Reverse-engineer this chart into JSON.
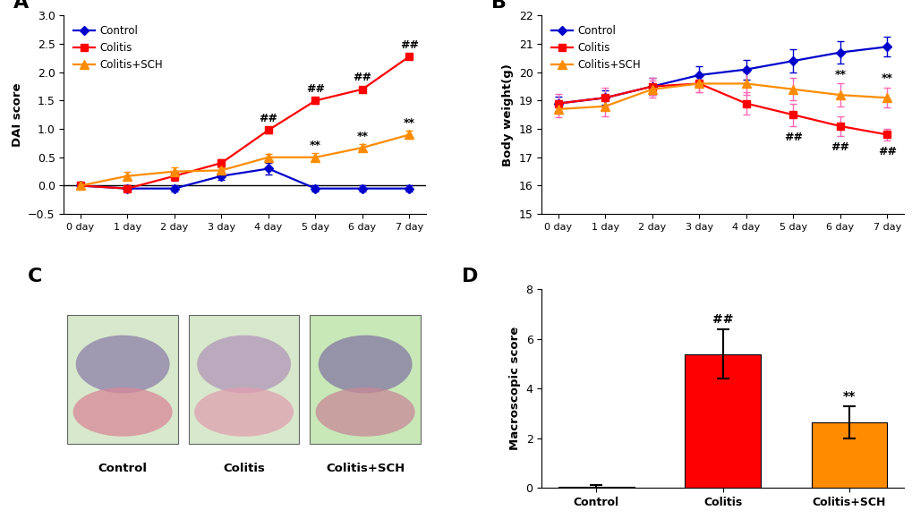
{
  "panel_A": {
    "ylabel": "DAI score",
    "xticklabels": [
      "0 day",
      "1 day",
      "2 day",
      "3 day",
      "4 day",
      "5 day",
      "6 day",
      "7 day"
    ],
    "ylim": [
      -0.5,
      3.0
    ],
    "yticks": [
      -0.5,
      0.0,
      0.5,
      1.0,
      1.5,
      2.0,
      2.5,
      3.0
    ],
    "control_y": [
      0.0,
      -0.05,
      -0.05,
      0.17,
      0.3,
      -0.05,
      -0.05,
      -0.05
    ],
    "control_err": [
      0.03,
      0.05,
      0.05,
      0.07,
      0.1,
      0.05,
      0.05,
      0.05
    ],
    "colitis_y": [
      0.0,
      -0.05,
      0.17,
      0.4,
      0.98,
      1.5,
      1.7,
      2.28
    ],
    "colitis_err": [
      0.03,
      0.05,
      0.08,
      0.07,
      0.05,
      0.05,
      0.05,
      0.05
    ],
    "sch_y": [
      0.0,
      0.17,
      0.25,
      0.27,
      0.5,
      0.5,
      0.67,
      0.9
    ],
    "sch_err": [
      0.03,
      0.07,
      0.07,
      0.06,
      0.06,
      0.07,
      0.06,
      0.07
    ],
    "annotations_hh": [
      4,
      5,
      6,
      7
    ],
    "annotations_ss": [
      5,
      6,
      7
    ],
    "control_color": "#0000CC",
    "colitis_color": "#FF0000",
    "sch_color": "#FF8C00"
  },
  "panel_B": {
    "ylabel": "Body weight(g)",
    "xticklabels": [
      "0 day",
      "1 day",
      "2 day",
      "3 day",
      "4 day",
      "5 day",
      "6 day",
      "7 day"
    ],
    "ylim": [
      15,
      22
    ],
    "yticks": [
      15,
      16,
      17,
      18,
      19,
      20,
      21,
      22
    ],
    "control_y": [
      18.9,
      19.1,
      19.5,
      19.9,
      20.1,
      20.4,
      20.7,
      20.9
    ],
    "control_err": [
      0.25,
      0.25,
      0.3,
      0.3,
      0.35,
      0.4,
      0.4,
      0.35
    ],
    "colitis_y": [
      18.9,
      19.1,
      19.5,
      19.6,
      18.9,
      18.5,
      18.1,
      17.8
    ],
    "colitis_err": [
      0.35,
      0.35,
      0.3,
      0.3,
      0.4,
      0.4,
      0.35,
      0.2
    ],
    "sch_y": [
      18.7,
      18.8,
      19.4,
      19.6,
      19.6,
      19.4,
      19.2,
      19.1
    ],
    "sch_err": [
      0.3,
      0.35,
      0.3,
      0.3,
      0.4,
      0.4,
      0.4,
      0.35
    ],
    "annotations_hh": [
      5,
      6,
      7
    ],
    "annotations_ss": [
      6,
      7
    ],
    "control_color": "#0000CC",
    "colitis_color": "#FF0000",
    "sch_color": "#FF8C00",
    "err_color_colitis": "#FF69B4",
    "err_color_sch": "#FF69B4"
  },
  "panel_D": {
    "ylabel": "Macroscopic score",
    "ylim": [
      0,
      8
    ],
    "yticks": [
      0,
      2,
      4,
      6,
      8
    ],
    "categories": [
      "Control",
      "Colitis",
      "Colitis+SCH"
    ],
    "values": [
      0.05,
      5.4,
      2.65
    ],
    "errors": [
      0.05,
      1.0,
      0.65
    ],
    "colors": [
      "#111111",
      "#FF0000",
      "#FF8C00"
    ],
    "annotation_hh_idx": 1,
    "annotation_ss_idx": 2
  },
  "he_images": {
    "labels": [
      "Control",
      "Colitis",
      "Colitis+SCH"
    ],
    "bg_colors": [
      "#d8e8cc",
      "#d8e8cc",
      "#c8e8b8"
    ],
    "tissue_colors_top": [
      "#7a5a8a",
      "#c090b0",
      "#8878a8"
    ],
    "tissue_colors_bottom": [
      "#d88898",
      "#e8a0b0",
      "#d890a0"
    ]
  }
}
